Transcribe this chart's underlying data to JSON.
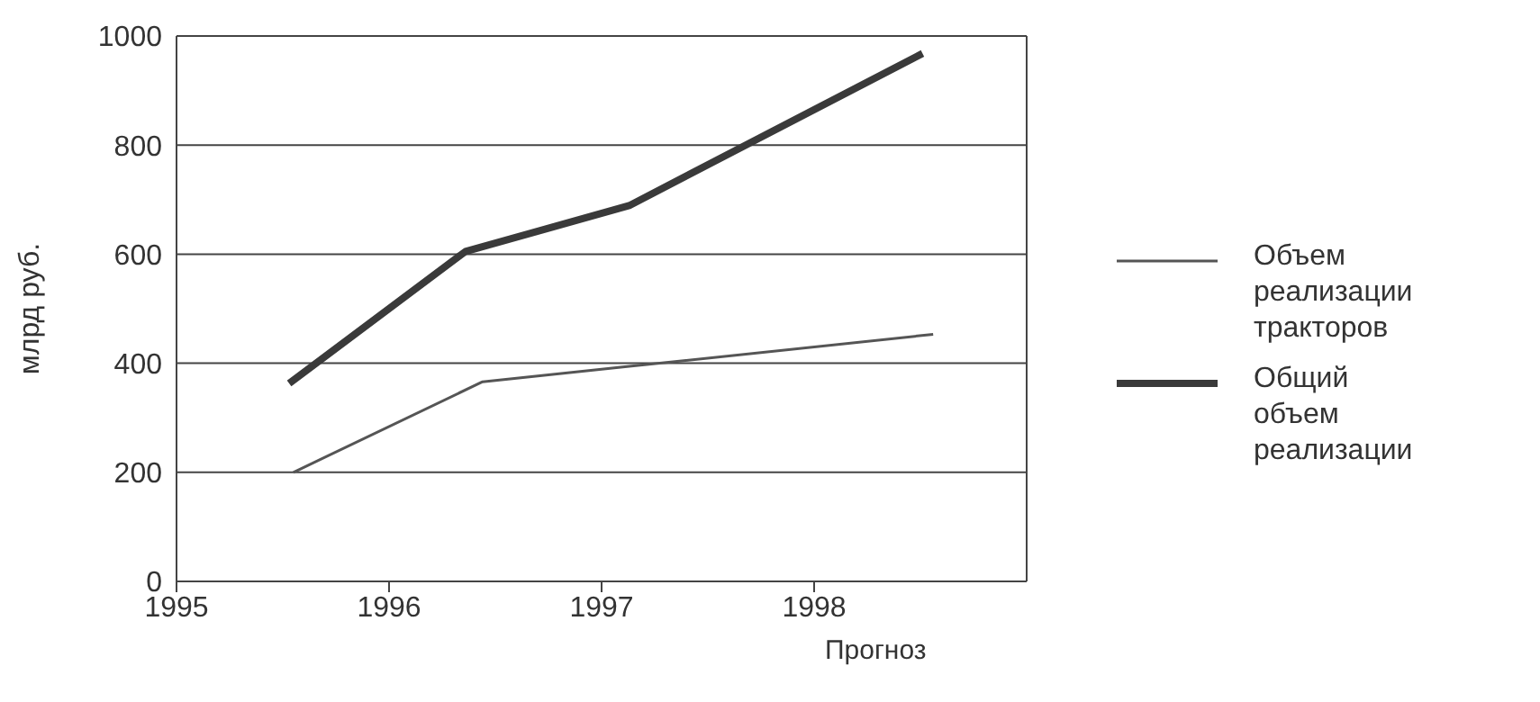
{
  "chart_data": {
    "type": "line",
    "ylabel": "млрд руб.",
    "annotations": [
      "Прогноз"
    ],
    "series": [
      {
        "name": "Объем реализации тракторов",
        "color": "#555555",
        "x": [
          1995.55,
          1996.44,
          1997.1,
          1998.56
        ],
        "values": [
          200,
          366,
          393,
          453
        ]
      },
      {
        "name": "Общий объем реализации",
        "color": "#3a3a3a",
        "x": [
          1995.53,
          1996.36,
          1997.13,
          1998.51
        ],
        "values": [
          363,
          605,
          689,
          968
        ]
      }
    ],
    "xlim": [
      1995,
      1999
    ],
    "xticks": [
      1995,
      1996,
      1997,
      1998
    ],
    "ylim": [
      0,
      1000
    ],
    "yticks": [
      0,
      200,
      400,
      600,
      800,
      1000
    ],
    "grid": "y",
    "legend": "right",
    "marker": "none",
    "line_style": "solid"
  }
}
